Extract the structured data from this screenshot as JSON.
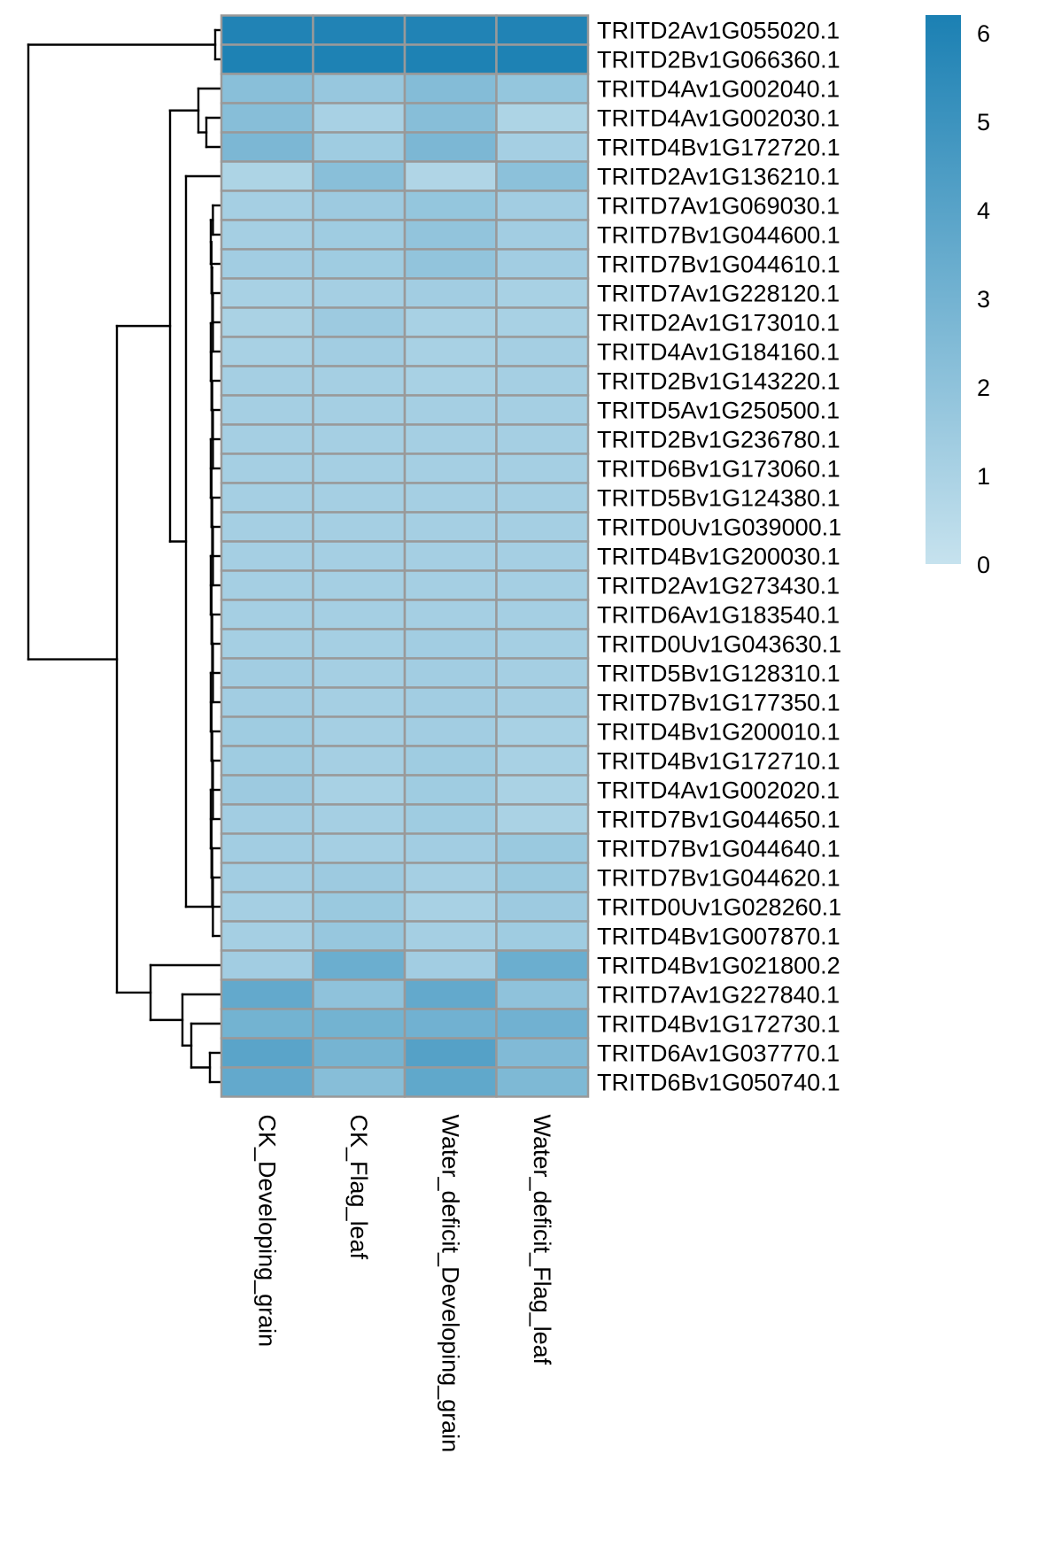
{
  "chart_data": {
    "type": "heatmap",
    "columns": [
      "CK_Developing_grain",
      "CK_Flag_leaf",
      "Water_deficit_Developing_grain",
      "Water_deficit_Flag_leaf"
    ],
    "rows": [
      {
        "name": "TRITD2Av1G055020.1",
        "values": [
          6.0,
          6.0,
          6.0,
          6.0
        ]
      },
      {
        "name": "TRITD2Bv1G066360.1",
        "values": [
          6.1,
          6.1,
          6.1,
          6.1
        ]
      },
      {
        "name": "TRITD4Av1G002040.1",
        "values": [
          2.2,
          1.7,
          2.4,
          1.8
        ]
      },
      {
        "name": "TRITD4Av1G002030.1",
        "values": [
          2.3,
          1.1,
          2.3,
          0.9
        ]
      },
      {
        "name": "TRITD4Bv1G172720.1",
        "values": [
          2.7,
          1.4,
          2.7,
          1.2
        ]
      },
      {
        "name": "TRITD2Av1G136210.1",
        "values": [
          0.9,
          2.2,
          0.8,
          2.1
        ]
      },
      {
        "name": "TRITD7Av1G069030.1",
        "values": [
          1.2,
          1.5,
          1.8,
          1.3
        ]
      },
      {
        "name": "TRITD7Bv1G044600.1",
        "values": [
          1.2,
          1.4,
          1.9,
          1.3
        ]
      },
      {
        "name": "TRITD7Bv1G044610.1",
        "values": [
          1.3,
          1.4,
          1.9,
          1.3
        ]
      },
      {
        "name": "TRITD7Av1G228120.1",
        "values": [
          1.1,
          1.2,
          1.3,
          1.1
        ]
      },
      {
        "name": "TRITD2Av1G173010.1",
        "values": [
          1.0,
          1.5,
          1.1,
          1.1
        ]
      },
      {
        "name": "TRITD4Av1G184160.1",
        "values": [
          1.1,
          1.3,
          1.1,
          1.2
        ]
      },
      {
        "name": "TRITD2Bv1G143220.1",
        "values": [
          1.2,
          1.2,
          1.1,
          1.2
        ]
      },
      {
        "name": "TRITD5Av1G250500.1",
        "values": [
          1.2,
          1.2,
          1.2,
          1.2
        ]
      },
      {
        "name": "TRITD2Bv1G236780.1",
        "values": [
          1.2,
          1.2,
          1.2,
          1.2
        ]
      },
      {
        "name": "TRITD6Bv1G173060.1",
        "values": [
          1.2,
          1.2,
          1.2,
          1.2
        ]
      },
      {
        "name": "TRITD5Bv1G124380.1",
        "values": [
          1.2,
          1.2,
          1.2,
          1.2
        ]
      },
      {
        "name": "TRITD0Uv1G039000.1",
        "values": [
          1.2,
          1.2,
          1.2,
          1.2
        ]
      },
      {
        "name": "TRITD4Bv1G200030.1",
        "values": [
          1.2,
          1.2,
          1.2,
          1.2
        ]
      },
      {
        "name": "TRITD2Av1G273430.1",
        "values": [
          1.2,
          1.2,
          1.2,
          1.2
        ]
      },
      {
        "name": "TRITD6Av1G183540.1",
        "values": [
          1.2,
          1.2,
          1.2,
          1.2
        ]
      },
      {
        "name": "TRITD0Uv1G043630.1",
        "values": [
          1.2,
          1.2,
          1.3,
          1.2
        ]
      },
      {
        "name": "TRITD5Bv1G128310.1",
        "values": [
          1.3,
          1.2,
          1.3,
          1.2
        ]
      },
      {
        "name": "TRITD7Bv1G177350.1",
        "values": [
          1.3,
          1.2,
          1.3,
          1.2
        ]
      },
      {
        "name": "TRITD4Bv1G200010.1",
        "values": [
          1.4,
          1.2,
          1.3,
          1.1
        ]
      },
      {
        "name": "TRITD4Bv1G172710.1",
        "values": [
          1.4,
          1.2,
          1.4,
          1.1
        ]
      },
      {
        "name": "TRITD4Av1G002020.1",
        "values": [
          1.5,
          1.1,
          1.4,
          1.0
        ]
      },
      {
        "name": "TRITD7Bv1G044650.1",
        "values": [
          1.3,
          1.2,
          1.4,
          1.0
        ]
      },
      {
        "name": "TRITD7Bv1G044640.1",
        "values": [
          1.3,
          1.2,
          1.3,
          1.6
        ]
      },
      {
        "name": "TRITD7Bv1G044620.1",
        "values": [
          1.3,
          1.5,
          1.2,
          1.6
        ]
      },
      {
        "name": "TRITD0Uv1G028260.1",
        "values": [
          1.2,
          1.6,
          1.1,
          1.5
        ]
      },
      {
        "name": "TRITD4Bv1G007870.1",
        "values": [
          1.2,
          1.7,
          1.2,
          1.4
        ]
      },
      {
        "name": "TRITD4Bv1G021800.2",
        "values": [
          1.3,
          3.3,
          1.3,
          3.3
        ]
      },
      {
        "name": "TRITD7Av1G227840.1",
        "values": [
          3.6,
          2.0,
          3.6,
          2.0
        ]
      },
      {
        "name": "TRITD4Bv1G172730.1",
        "values": [
          3.0,
          3.0,
          3.1,
          3.1
        ]
      },
      {
        "name": "TRITD6Av1G037770.1",
        "values": [
          3.9,
          2.9,
          4.1,
          2.5
        ]
      },
      {
        "name": "TRITD6Bv1G050740.1",
        "values": [
          3.6,
          2.3,
          3.7,
          2.6
        ]
      }
    ],
    "colorbar": {
      "range": [
        0,
        6.2
      ],
      "ticks": [
        "0",
        "1",
        "2",
        "3",
        "4",
        "5",
        "6"
      ],
      "low_color": "#c6e2ee",
      "high_color": "#1b80b3"
    },
    "cell_border_color": "#999999",
    "row_dendrogram": "left",
    "title": "",
    "xlabel": "",
    "ylabel": ""
  }
}
